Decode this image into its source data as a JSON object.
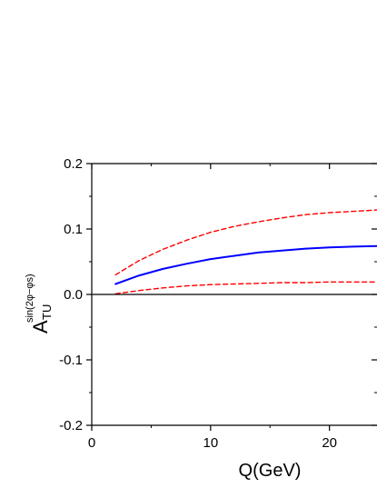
{
  "chart_data": {
    "type": "line",
    "xlabel": "Q(GeV)",
    "ylabel": {
      "base": "A",
      "subscript": "TU",
      "superscript": "sin(2φ−φs)"
    },
    "xlim": [
      0,
      24
    ],
    "ylim": [
      -0.2,
      0.2
    ],
    "x_ticks": [
      0,
      10,
      20
    ],
    "x_tick_labels": [
      "0",
      "10",
      "20"
    ],
    "y_ticks": [
      -0.2,
      -0.1,
      0.0,
      0.1,
      0.2
    ],
    "y_tick_labels": [
      "-0.2",
      "-0.1",
      "0.0",
      "0.1",
      "0.2"
    ],
    "grid": false,
    "zero_line": true,
    "series": [
      {
        "style": "solid",
        "color": "#0000ff",
        "x": [
          2,
          4,
          6,
          8,
          10,
          12,
          14,
          16,
          18,
          20,
          22,
          24
        ],
        "y": [
          0.016,
          0.029,
          0.039,
          0.047,
          0.054,
          0.059,
          0.064,
          0.067,
          0.07,
          0.072,
          0.073,
          0.074
        ]
      },
      {
        "style": "dashed",
        "color": "#ff0000",
        "x": [
          2,
          4,
          6,
          8,
          10,
          12,
          14,
          16,
          18,
          20,
          22,
          24
        ],
        "y": [
          0.03,
          0.052,
          0.069,
          0.083,
          0.095,
          0.104,
          0.111,
          0.117,
          0.122,
          0.125,
          0.127,
          0.129
        ]
      },
      {
        "style": "dashed",
        "color": "#ff0000",
        "x": [
          2,
          4,
          6,
          8,
          10,
          12,
          14,
          16,
          18,
          20,
          22,
          24
        ],
        "y": [
          0.001,
          0.006,
          0.01,
          0.013,
          0.015,
          0.016,
          0.017,
          0.018,
          0.018,
          0.019,
          0.019,
          0.019
        ]
      }
    ]
  }
}
